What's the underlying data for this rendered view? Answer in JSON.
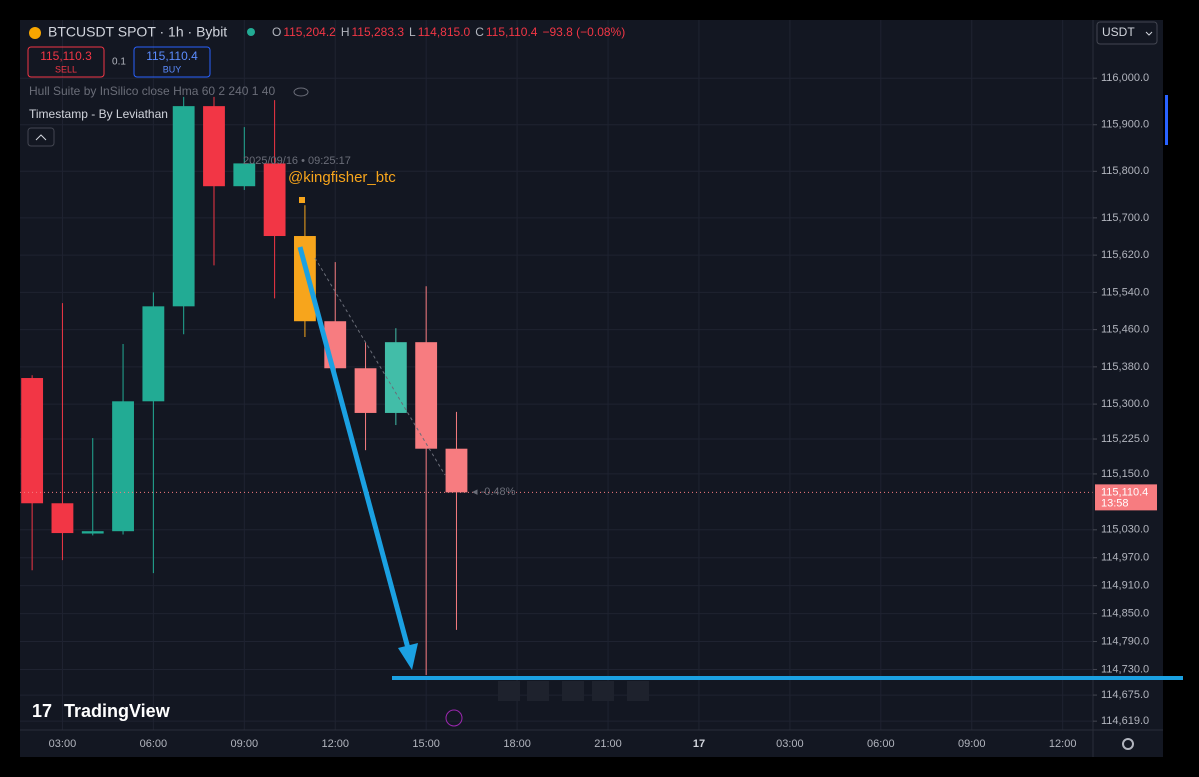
{
  "header": {
    "symbol": "BTCUSDT SPOT · 1h · Bybit",
    "ohlc": [
      {
        "label": "O",
        "value": "115,204.2"
      },
      {
        "label": "H",
        "value": "115,283.3"
      },
      {
        "label": "L",
        "value": "114,815.0"
      },
      {
        "label": "C",
        "value": "115,110.4"
      }
    ],
    "change": "−93.8 (−0.08%)",
    "sell": {
      "price": "115,110.3",
      "label": "SELL"
    },
    "qty": "0.1",
    "buy": {
      "price": "115,110.4",
      "label": "BUY"
    },
    "indicators": [
      "Hull Suite by InSilico close Hma 60 2 240 1 40",
      "Timestamp - By Leviathan"
    ],
    "currency": "USDT"
  },
  "annotations": {
    "timestamp": "2025/09/16 • 09:25:17",
    "watermark": "@kingfisher_btc",
    "change_pct": "-0.48%",
    "countdown": "13:58",
    "brand": "TradingView"
  },
  "chart_data": {
    "type": "candlestick",
    "x": [
      2,
      3,
      4,
      5,
      6,
      7,
      8,
      9,
      10,
      11,
      12,
      13,
      14,
      15,
      16
    ],
    "open": [
      115356,
      115087,
      115022,
      115027,
      115306,
      115510,
      115940,
      115768,
      115817,
      115661,
      115478,
      115377,
      115281,
      115433,
      115204.2
    ],
    "high": [
      115362,
      115517,
      115227,
      115429,
      115540,
      115960,
      115960,
      115895,
      115953,
      115727,
      115605,
      115433,
      115463,
      115553,
      115283.3
    ],
    "low": [
      114943,
      114965,
      115018,
      115020,
      114937,
      115450,
      115598,
      115760,
      115527,
      115444,
      115368,
      115201,
      115255,
      114718,
      114815.0
    ],
    "close": [
      115087,
      115023,
      115027,
      115306,
      115510,
      115940,
      115768,
      115817,
      115661,
      115478,
      115377,
      115281,
      115433,
      115204.2,
      115110.4
    ],
    "close_label": "115,110.4",
    "colors": [
      "#f23645",
      "#f23645",
      "#22ab94",
      "#22ab94",
      "#22ab94",
      "#22ab94",
      "#f23645",
      "#22ab94",
      "#f23645",
      "#f7a51c",
      "#f77c80",
      "#f77c80",
      "#42bda8",
      "#f77c80",
      "#f77c80"
    ],
    "xlim": [
      1.6,
      37.0
    ],
    "xticks": [
      {
        "value": 3,
        "label": "03:00"
      },
      {
        "value": 6,
        "label": "06:00"
      },
      {
        "value": 9,
        "label": "09:00"
      },
      {
        "value": 12,
        "label": "12:00"
      },
      {
        "value": 15,
        "label": "15:00"
      },
      {
        "value": 18,
        "label": "18:00"
      },
      {
        "value": 21,
        "label": "21:00"
      },
      {
        "value": 24,
        "label": "17"
      },
      {
        "value": 27,
        "label": "03:00"
      },
      {
        "value": 30,
        "label": "06:00"
      },
      {
        "value": 33,
        "label": "09:00"
      },
      {
        "value": 36,
        "label": "12:00"
      }
    ],
    "ylim": [
      114600,
      116125
    ],
    "yticks": [
      {
        "value": 116000,
        "label": "116,000.0"
      },
      {
        "value": 115900,
        "label": "115,900.0"
      },
      {
        "value": 115800,
        "label": "115,800.0"
      },
      {
        "value": 115700,
        "label": "115,700.0"
      },
      {
        "value": 115620,
        "label": "115,620.0"
      },
      {
        "value": 115540,
        "label": "115,540.0"
      },
      {
        "value": 115460,
        "label": "115,460.0"
      },
      {
        "value": 115380,
        "label": "115,380.0"
      },
      {
        "value": 115300,
        "label": "115,300.0"
      },
      {
        "value": 115225,
        "label": "115,225.0"
      },
      {
        "value": 115150,
        "label": "115,150.0"
      },
      {
        "value": 115030,
        "label": "115,030.0"
      },
      {
        "value": 114970,
        "label": "114,970.0"
      },
      {
        "value": 114910,
        "label": "114,910.0"
      },
      {
        "value": 114850,
        "label": "114,850.0"
      },
      {
        "value": 114790,
        "label": "114,790.0"
      },
      {
        "value": 114730,
        "label": "114,730.0"
      },
      {
        "value": 114675,
        "label": "114,675.0"
      },
      {
        "value": 114619,
        "label": "114,619.0"
      }
    ],
    "grid": true
  }
}
